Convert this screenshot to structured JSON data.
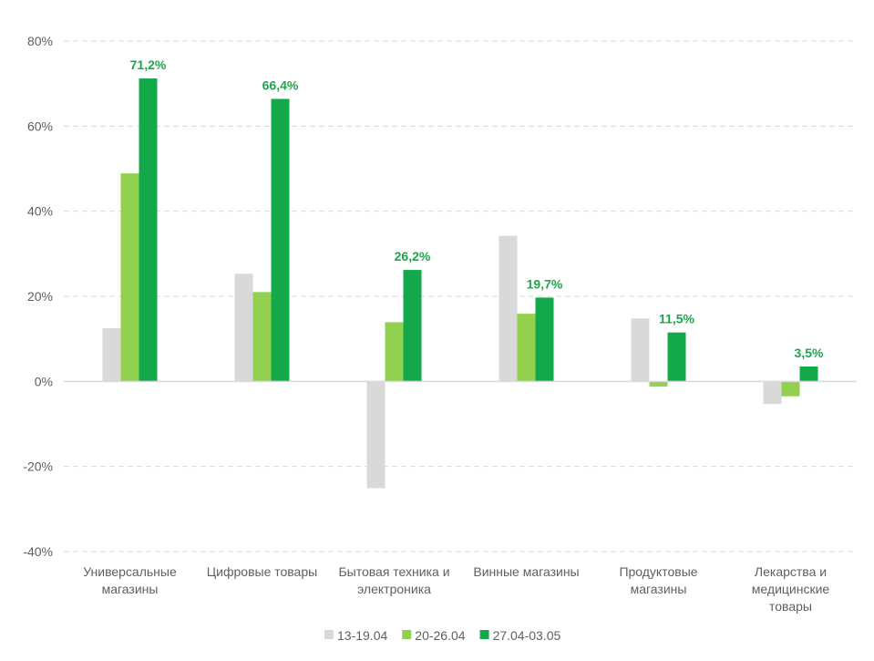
{
  "chart_data": {
    "type": "bar",
    "categories": [
      [
        "Универсальные",
        "магазины"
      ],
      [
        "Цифровые товары"
      ],
      [
        "Бытовая техника и",
        "электроника"
      ],
      [
        "Винные магазины"
      ],
      [
        "Продуктовые",
        "магазины"
      ],
      [
        "Лекарства и",
        "медицинские",
        "товары"
      ]
    ],
    "series": [
      {
        "name": "13-19.04",
        "color": "#d9d9d9",
        "values": [
          12.5,
          25.3,
          -25.1,
          34.2,
          14.8,
          -5.3
        ]
      },
      {
        "name": "20-26.04",
        "color": "#92d050",
        "values": [
          48.9,
          21.0,
          13.9,
          15.9,
          -1.2,
          -3.5
        ]
      },
      {
        "name": "27.04-03.05",
        "color": "#13a84a",
        "values": [
          71.2,
          66.4,
          26.2,
          19.7,
          11.5,
          3.5
        ]
      }
    ],
    "data_labels": [
      "71,2%",
      "66,4%",
      "26,2%",
      "19,7%",
      "11,5%",
      "3,5%"
    ],
    "data_label_series": 2,
    "y_ticks": [
      "80%",
      "60%",
      "40%",
      "20%",
      "0%",
      "-20%",
      "-40%"
    ],
    "y_tick_values": [
      80,
      60,
      40,
      20,
      0,
      -20,
      -40
    ],
    "ylim": [
      -40,
      80
    ],
    "grid": true,
    "legend_position": "bottom",
    "title": "",
    "xlabel": "",
    "ylabel": ""
  }
}
